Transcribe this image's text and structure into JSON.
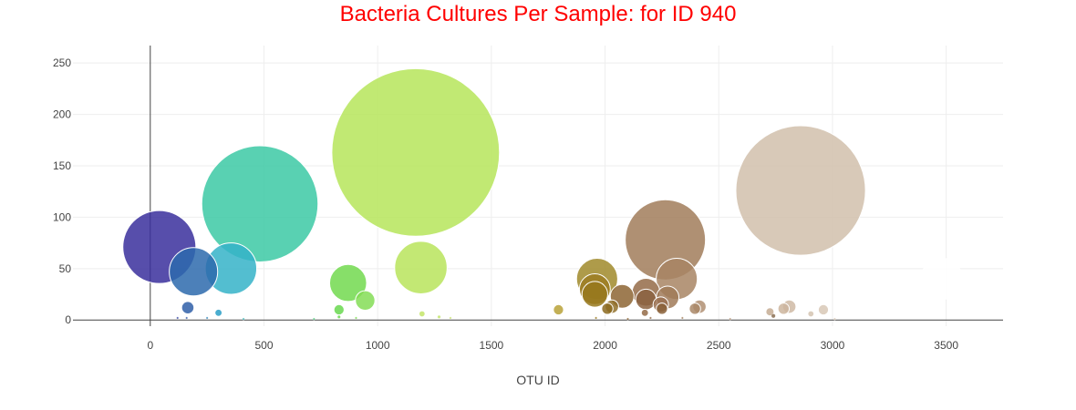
{
  "chart_data": {
    "type": "scatter",
    "title": "Bacteria Cultures Per Sample: for ID 940",
    "xlabel": "OTU ID",
    "ylabel": "",
    "xlim": [
      -340,
      3750
    ],
    "ylim": [
      -6,
      267
    ],
    "x_ticks": [
      0,
      500,
      1000,
      1500,
      2000,
      2500,
      3000,
      3500
    ],
    "y_ticks": [
      0,
      50,
      100,
      150,
      200,
      250
    ],
    "grid": true,
    "legend": "none",
    "colors": {
      "title": "#ff0000",
      "axis_line": "#444444",
      "grid": "#eeeeee"
    },
    "points": [
      {
        "x": 40,
        "y": 71,
        "size": 71,
        "color": "#3a2f9c"
      },
      {
        "x": 190,
        "y": 47,
        "size": 47,
        "color": "#2d6aad"
      },
      {
        "x": 165,
        "y": 12,
        "size": 12,
        "color": "#2f5fa8"
      },
      {
        "x": 300,
        "y": 7,
        "size": 7,
        "color": "#2a9fc7"
      },
      {
        "x": 355,
        "y": 50,
        "size": 50,
        "color": "#35b3c8"
      },
      {
        "x": 482,
        "y": 113,
        "size": 113,
        "color": "#3cc9a4"
      },
      {
        "x": 830,
        "y": 10,
        "size": 10,
        "color": "#69d84f"
      },
      {
        "x": 870,
        "y": 36,
        "size": 36,
        "color": "#72d94f"
      },
      {
        "x": 945,
        "y": 19,
        "size": 19,
        "color": "#84dd56"
      },
      {
        "x": 1167,
        "y": 163,
        "size": 163,
        "color": "#b6e55a"
      },
      {
        "x": 1190,
        "y": 51,
        "size": 51,
        "color": "#b8e45c"
      },
      {
        "x": 1195,
        "y": 6,
        "size": 6,
        "color": "#c4e56a"
      },
      {
        "x": 1795,
        "y": 10,
        "size": 10,
        "color": "#b8a238"
      },
      {
        "x": 1965,
        "y": 40,
        "size": 40,
        "color": "#a08a2a"
      },
      {
        "x": 1955,
        "y": 30,
        "size": 30,
        "color": "#9c7d22"
      },
      {
        "x": 1955,
        "y": 25,
        "size": 25,
        "color": "#96781c"
      },
      {
        "x": 2010,
        "y": 11,
        "size": 11,
        "color": "#8c6a1e"
      },
      {
        "x": 2030,
        "y": 13,
        "size": 13,
        "color": "#91702a"
      },
      {
        "x": 2075,
        "y": 23,
        "size": 23,
        "color": "#8d6534"
      },
      {
        "x": 2180,
        "y": 27,
        "size": 27,
        "color": "#946b48"
      },
      {
        "x": 2180,
        "y": 20,
        "size": 20,
        "color": "#8b6140"
      },
      {
        "x": 2175,
        "y": 7,
        "size": 7,
        "color": "#946b48"
      },
      {
        "x": 2245,
        "y": 15,
        "size": 15,
        "color": "#9a7050"
      },
      {
        "x": 2250,
        "y": 11,
        "size": 11,
        "color": "#8a6038"
      },
      {
        "x": 2265,
        "y": 78,
        "size": 78,
        "color": "#a17c5a"
      },
      {
        "x": 2275,
        "y": 22,
        "size": 22,
        "color": "#a07a58"
      },
      {
        "x": 2315,
        "y": 40,
        "size": 40,
        "color": "#a88564"
      },
      {
        "x": 2395,
        "y": 11,
        "size": 11,
        "color": "#aa8868"
      },
      {
        "x": 2415,
        "y": 13,
        "size": 13,
        "color": "#b08f72"
      },
      {
        "x": 2725,
        "y": 8,
        "size": 8,
        "color": "#c6ad94"
      },
      {
        "x": 2785,
        "y": 11,
        "size": 11,
        "color": "#ccb59e"
      },
      {
        "x": 2810,
        "y": 13,
        "size": 13,
        "color": "#cfbaa4"
      },
      {
        "x": 2860,
        "y": 126,
        "size": 126,
        "color": "#d1bfab"
      },
      {
        "x": 2905,
        "y": 6,
        "size": 6,
        "color": "#d5c4b2"
      },
      {
        "x": 2960,
        "y": 10,
        "size": 10,
        "color": "#d8c8b6"
      },
      {
        "x": 3480,
        "y": 40,
        "size": 40,
        "color": "#ffffff"
      },
      {
        "x": 120,
        "y": 2,
        "size": 2,
        "color": "#3e4ea8"
      },
      {
        "x": 160,
        "y": 2,
        "size": 2,
        "color": "#3e62ad"
      },
      {
        "x": 250,
        "y": 2,
        "size": 2,
        "color": "#3b8bbd"
      },
      {
        "x": 410,
        "y": 1,
        "size": 1,
        "color": "#46b7b8"
      },
      {
        "x": 720,
        "y": 1,
        "size": 1,
        "color": "#5acd84"
      },
      {
        "x": 830,
        "y": 3,
        "size": 3,
        "color": "#69d84f"
      },
      {
        "x": 905,
        "y": 2,
        "size": 2,
        "color": "#7bdb52"
      },
      {
        "x": 1270,
        "y": 3,
        "size": 3,
        "color": "#c2e468"
      },
      {
        "x": 1320,
        "y": 2,
        "size": 2,
        "color": "#c7e36e"
      },
      {
        "x": 1960,
        "y": 2,
        "size": 2,
        "color": "#9c7d22"
      },
      {
        "x": 2100,
        "y": 1,
        "size": 1,
        "color": "#8d6534"
      },
      {
        "x": 2200,
        "y": 2,
        "size": 2,
        "color": "#946b48"
      },
      {
        "x": 2340,
        "y": 2,
        "size": 2,
        "color": "#a88564"
      },
      {
        "x": 2550,
        "y": 1,
        "size": 1,
        "color": "#b89a80"
      },
      {
        "x": 2740,
        "y": 4,
        "size": 4,
        "color": "#8a6e52"
      },
      {
        "x": 3010,
        "y": 1,
        "size": 1,
        "color": "#d8c8b6"
      }
    ]
  }
}
